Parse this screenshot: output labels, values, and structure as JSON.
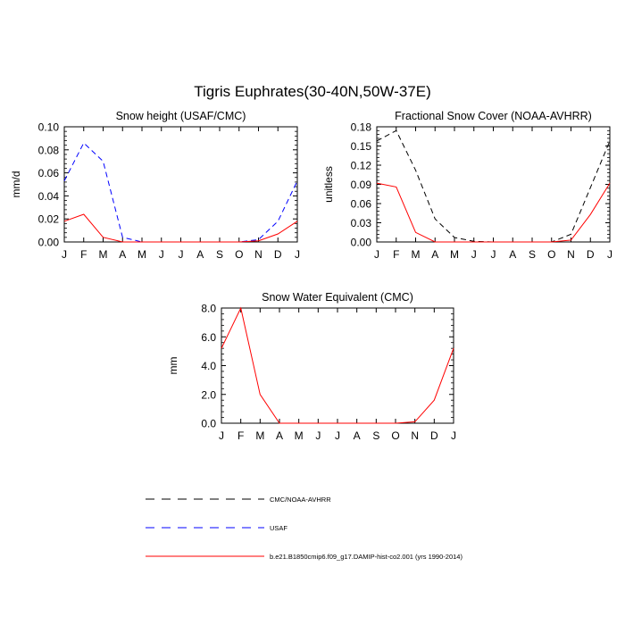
{
  "figure_title": "Tigris Euphrates(30-40N,50W-37E)",
  "chart_data": [
    {
      "type": "line",
      "title": "Snow height (USAF/CMC)",
      "ylabel": "mm/d",
      "xlabel": "",
      "categories": [
        "J",
        "F",
        "M",
        "A",
        "M",
        "J",
        "J",
        "A",
        "S",
        "O",
        "N",
        "D",
        "J"
      ],
      "ylim": [
        0,
        0.1
      ],
      "yticks": [
        "0.00",
        "0.02",
        "0.04",
        "0.06",
        "0.08",
        "0.10"
      ],
      "series": [
        {
          "name": "CMC/NOAA-AVHRR",
          "color": "#000000",
          "dash": true,
          "values": [
            0,
            0,
            0,
            0,
            0,
            0,
            0,
            0,
            0,
            0,
            0,
            0,
            0
          ]
        },
        {
          "name": "USAF",
          "color": "#0000ff",
          "dash": true,
          "values": [
            0.053,
            0.086,
            0.07,
            0.004,
            0,
            0,
            0,
            0,
            0,
            0,
            0.002,
            0.018,
            0.053
          ]
        },
        {
          "name": "b.e21.B1850cmip6.f09_g17.DAMIP-hist-co2.001 (yrs 1990-2014)",
          "color": "#ff0000",
          "dash": false,
          "values": [
            0.018,
            0.024,
            0.004,
            0,
            0,
            0,
            0,
            0,
            0,
            0,
            0.001,
            0.007,
            0.018
          ]
        }
      ]
    },
    {
      "type": "line",
      "title": "Fractional Snow Cover (NOAA-AVHRR)",
      "ylabel": "unitless",
      "xlabel": "",
      "categories": [
        "J",
        "F",
        "M",
        "A",
        "M",
        "J",
        "J",
        "A",
        "S",
        "O",
        "N",
        "D",
        "J"
      ],
      "ylim": [
        0,
        0.18
      ],
      "yticks": [
        "0.00",
        "0.03",
        "0.06",
        "0.09",
        "0.12",
        "0.15",
        "0.18"
      ],
      "series": [
        {
          "name": "CMC/NOAA-AVHRR",
          "color": "#000000",
          "dash": true,
          "values": [
            0.158,
            0.174,
            0.112,
            0.036,
            0.007,
            0.001,
            0,
            0,
            0,
            0,
            0.012,
            0.085,
            0.158
          ]
        },
        {
          "name": "b.e21.B1850cmip6.f09_g17.DAMIP-hist-co2.001 (yrs 1990-2014)",
          "color": "#ff0000",
          "dash": false,
          "values": [
            0.092,
            0.086,
            0.015,
            0,
            0,
            0,
            0,
            0,
            0,
            0,
            0.003,
            0.043,
            0.092
          ]
        }
      ]
    },
    {
      "type": "line",
      "title": "Snow Water Equivalent (CMC)",
      "ylabel": "mm",
      "xlabel": "",
      "categories": [
        "J",
        "F",
        "M",
        "A",
        "M",
        "J",
        "J",
        "A",
        "S",
        "O",
        "N",
        "D",
        "J"
      ],
      "ylim": [
        0,
        8.0
      ],
      "yticks": [
        "0.0",
        "2.0",
        "4.0",
        "6.0",
        "8.0"
      ],
      "series": [
        {
          "name": "CMC/NOAA-AVHRR",
          "color": "#000000",
          "dash": true,
          "values": [
            0,
            0,
            0,
            0,
            0,
            0,
            0,
            0,
            0,
            0,
            0,
            0,
            0
          ]
        },
        {
          "name": "b.e21.B1850cmip6.f09_g17.DAMIP-hist-co2.001 (yrs 1990-2014)",
          "color": "#ff0000",
          "dash": false,
          "values": [
            5.2,
            8.0,
            2.0,
            0,
            0,
            0,
            0,
            0,
            0,
            0,
            0.1,
            1.6,
            5.2
          ]
        }
      ]
    }
  ],
  "legend": [
    {
      "label": "CMC/NOAA-AVHRR",
      "color": "#000000",
      "dash": true
    },
    {
      "label": "USAF",
      "color": "#0000ff",
      "dash": true
    },
    {
      "label": "b.e21.B1850cmip6.f09_g17.DAMIP-hist-co2.001 (yrs 1990-2014)",
      "color": "#ff0000",
      "dash": false
    }
  ]
}
